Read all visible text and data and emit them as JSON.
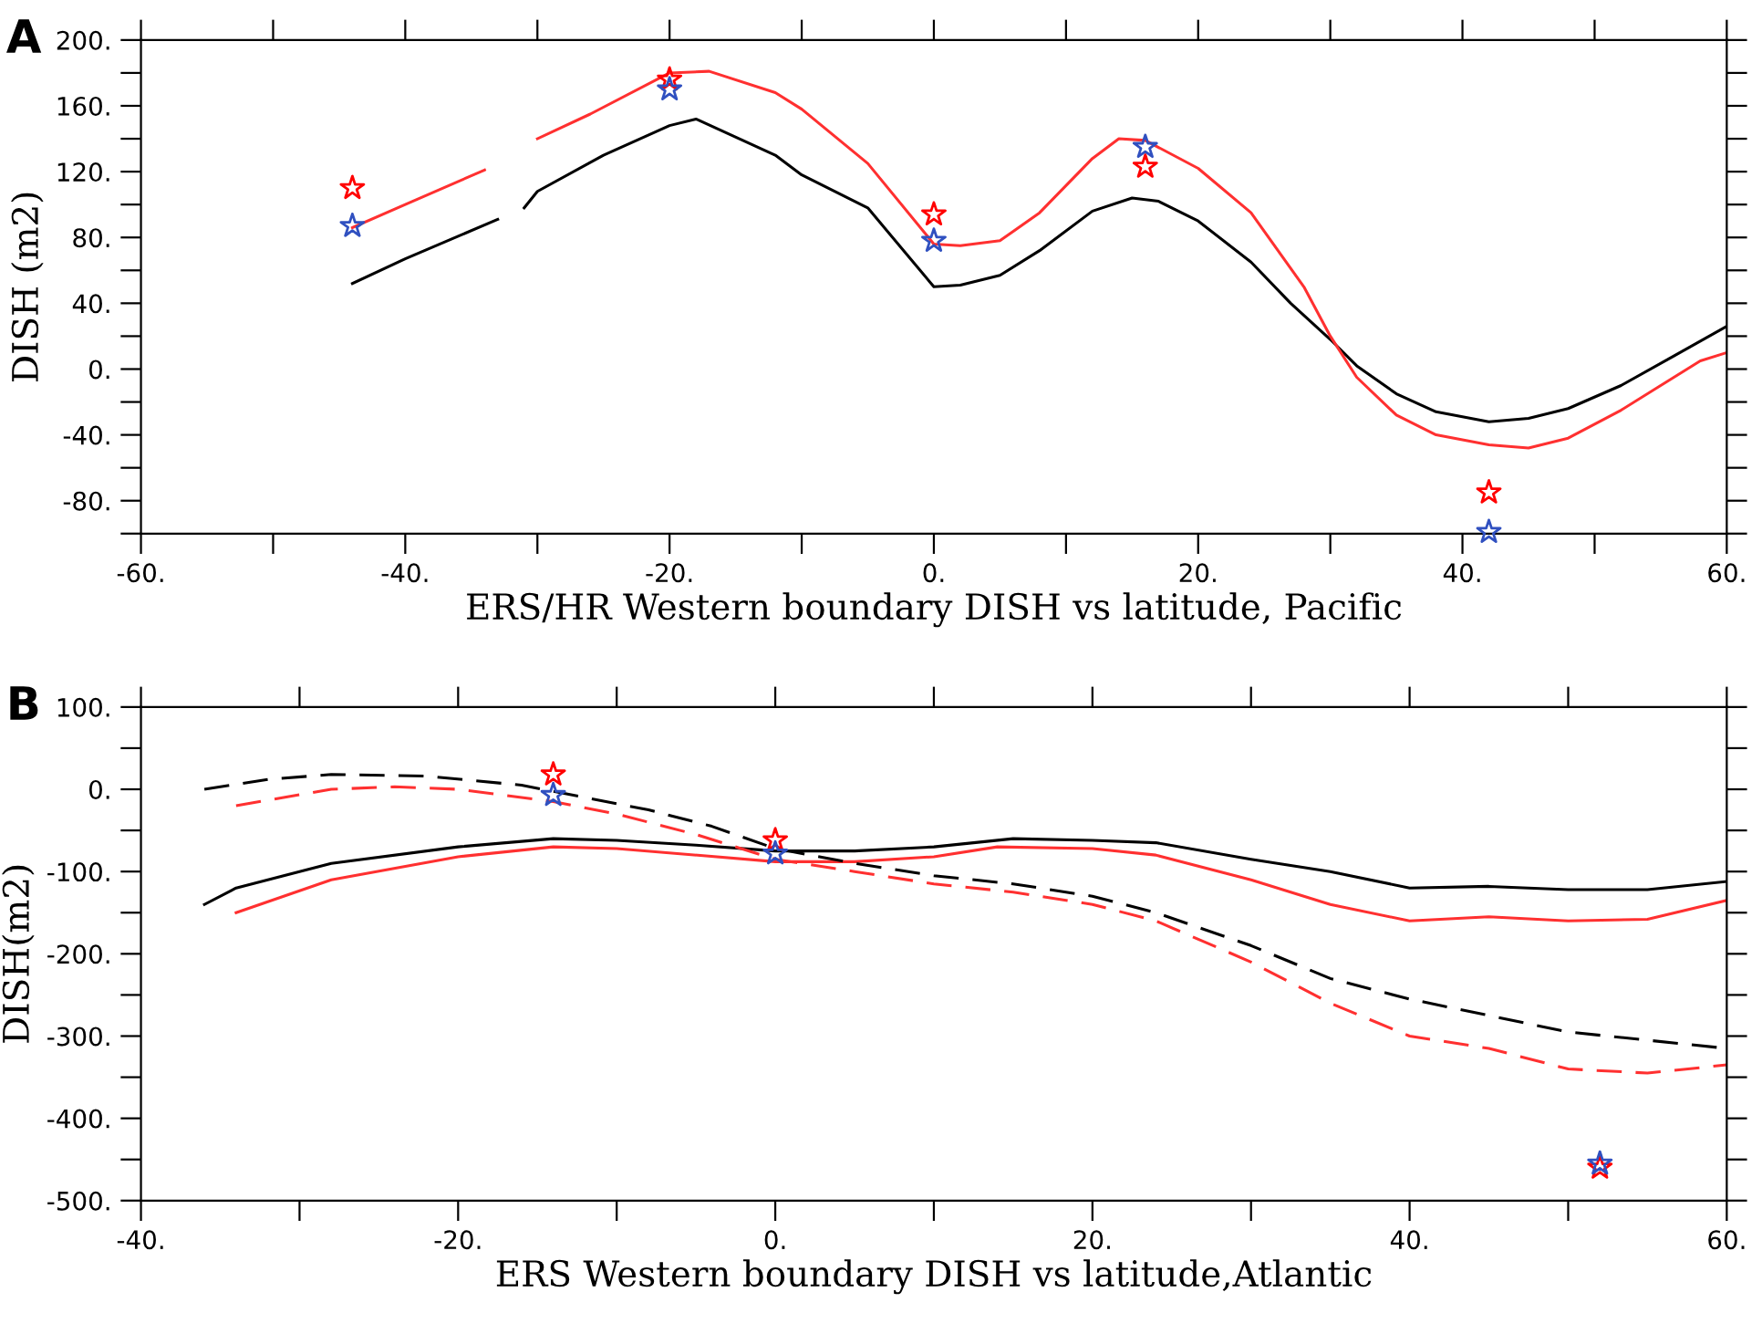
{
  "chart_data": [
    {
      "type": "line",
      "xlabel": "ERS/HR Western boundary DISH vs latitude, Pacific",
      "ylabel": "DISH (m2)",
      "annotations": [
        "A"
      ],
      "xlim": [
        -60,
        60
      ],
      "ylim": [
        -100,
        200
      ],
      "xticks": [
        {
          "value": -60,
          "label": "-60."
        },
        {
          "value": -50,
          "label": null
        },
        {
          "value": -40,
          "label": "-40."
        },
        {
          "value": -30,
          "label": null
        },
        {
          "value": -20,
          "label": "-20."
        },
        {
          "value": -10,
          "label": null
        },
        {
          "value": 0,
          "label": "0."
        },
        {
          "value": 10,
          "label": null
        },
        {
          "value": 20,
          "label": "20."
        },
        {
          "value": 30,
          "label": null
        },
        {
          "value": 40,
          "label": "40."
        },
        {
          "value": 50,
          "label": null
        },
        {
          "value": 60,
          "label": "60."
        }
      ],
      "yticks": [
        {
          "value": -100,
          "label": null
        },
        {
          "value": -80,
          "label": "-80."
        },
        {
          "value": -60,
          "label": null
        },
        {
          "value": -40,
          "label": "-40."
        },
        {
          "value": -20,
          "label": null
        },
        {
          "value": 0,
          "label": "0."
        },
        {
          "value": 20,
          "label": null
        },
        {
          "value": 40,
          "label": "40."
        },
        {
          "value": 60,
          "label": null
        },
        {
          "value": 80,
          "label": "80."
        },
        {
          "value": 100,
          "label": null
        },
        {
          "value": 120,
          "label": "120."
        },
        {
          "value": 140,
          "label": null
        },
        {
          "value": 160,
          "label": "160."
        },
        {
          "value": 180,
          "label": null
        },
        {
          "value": 200,
          "label": "200."
        }
      ],
      "grid": false,
      "legend": false,
      "series": [
        {
          "type": "line",
          "line_style": "solid",
          "color": "#000000",
          "x": [
            -44,
            -40,
            -33,
            -32,
            -31,
            -30,
            -25,
            -20,
            -18,
            -12,
            -10,
            -5,
            0,
            2,
            5,
            8,
            12,
            15,
            17,
            20,
            24,
            27,
            30,
            32,
            35,
            38,
            42,
            45,
            48,
            52,
            56,
            60
          ],
          "values": [
            52,
            67,
            91,
            null,
            98,
            108,
            130,
            148,
            152,
            130,
            118,
            98,
            50,
            51,
            57,
            72,
            96,
            104,
            102,
            90,
            65,
            40,
            18,
            2,
            -15,
            -26,
            -32,
            -30,
            -24,
            -10,
            8,
            26
          ]
        },
        {
          "type": "line",
          "line_style": "solid",
          "color": "#ff3030",
          "x": [
            -44,
            -40,
            -34,
            -32,
            -30,
            -26,
            -20,
            -17,
            -12,
            -10,
            -5,
            0,
            2,
            5,
            8,
            12,
            14,
            16,
            20,
            24,
            28,
            30,
            32,
            35,
            38,
            42,
            45,
            48,
            52,
            55,
            58,
            60
          ],
          "values": [
            86,
            100,
            121,
            null,
            140,
            155,
            180,
            181,
            168,
            158,
            125,
            76,
            75,
            78,
            95,
            128,
            140,
            139,
            122,
            95,
            50,
            20,
            -5,
            -28,
            -40,
            -46,
            -48,
            -42,
            -25,
            -10,
            5,
            10
          ]
        },
        {
          "type": "scatter",
          "marker": "star",
          "color": "#ff0000",
          "x": [
            -44,
            -20,
            0,
            16,
            42
          ],
          "values": [
            110,
            176,
            94,
            123,
            -75
          ]
        },
        {
          "type": "scatter",
          "marker": "star",
          "color": "#3050c0",
          "x": [
            -44,
            -20,
            0,
            16,
            42
          ],
          "values": [
            87,
            170,
            78,
            135,
            -99
          ]
        }
      ]
    },
    {
      "type": "line",
      "xlabel": "ERS Western boundary DISH vs latitude,Atlantic",
      "ylabel": "DISH(m2)",
      "annotations": [
        "B"
      ],
      "xlim": [
        -40,
        60
      ],
      "ylim": [
        -500,
        100
      ],
      "xticks": [
        {
          "value": -40,
          "label": "-40."
        },
        {
          "value": -30,
          "label": null
        },
        {
          "value": -20,
          "label": "-20."
        },
        {
          "value": -10,
          "label": null
        },
        {
          "value": 0,
          "label": "0."
        },
        {
          "value": 10,
          "label": null
        },
        {
          "value": 20,
          "label": "20."
        },
        {
          "value": 30,
          "label": null
        },
        {
          "value": 40,
          "label": "40."
        },
        {
          "value": 50,
          "label": null
        },
        {
          "value": 60,
          "label": "60."
        }
      ],
      "yticks": [
        {
          "value": -500,
          "label": "-500."
        },
        {
          "value": -450,
          "label": null
        },
        {
          "value": -400,
          "label": "-400."
        },
        {
          "value": -350,
          "label": null
        },
        {
          "value": -300,
          "label": "-300."
        },
        {
          "value": -250,
          "label": null
        },
        {
          "value": -200,
          "label": "-200."
        },
        {
          "value": -150,
          "label": null
        },
        {
          "value": -100,
          "label": "-100."
        },
        {
          "value": -50,
          "label": null
        },
        {
          "value": 0,
          "label": "0."
        },
        {
          "value": 50,
          "label": null
        },
        {
          "value": 100,
          "label": "100."
        }
      ],
      "grid": false,
      "legend": false,
      "series": [
        {
          "type": "line",
          "line_style": "solid",
          "color": "#000000",
          "x": [
            -36,
            -34,
            -28,
            -20,
            -14,
            -10,
            -5,
            0,
            5,
            10,
            15,
            20,
            24,
            30,
            35,
            40,
            45,
            50,
            55,
            60
          ],
          "values": [
            -140,
            -120,
            -90,
            -70,
            -60,
            -62,
            -68,
            -75,
            -75,
            -70,
            -60,
            -62,
            -65,
            -85,
            -100,
            -120,
            -118,
            -122,
            -122,
            -112
          ]
        },
        {
          "type": "line",
          "line_style": "solid",
          "color": "#ff3030",
          "x": [
            -34,
            -28,
            -20,
            -14,
            -10,
            0,
            5,
            10,
            14,
            20,
            24,
            30,
            35,
            40,
            45,
            50,
            55,
            60
          ],
          "values": [
            -150,
            -110,
            -82,
            -70,
            -72,
            -88,
            -88,
            -82,
            -70,
            -72,
            -80,
            -110,
            -140,
            -160,
            -155,
            -160,
            -158,
            -135
          ]
        },
        {
          "type": "line",
          "line_style": "dashed",
          "color": "#000000",
          "x": [
            -36,
            -32,
            -28,
            -22,
            -16,
            -12,
            -8,
            -4,
            0,
            5,
            10,
            15,
            20,
            24,
            30,
            35,
            40,
            45,
            50,
            55,
            60
          ],
          "values": [
            0,
            12,
            18,
            16,
            5,
            -10,
            -25,
            -45,
            -72,
            -90,
            -105,
            -115,
            -130,
            -150,
            -190,
            -230,
            -255,
            -275,
            -295,
            -305,
            -315
          ]
        },
        {
          "type": "line",
          "line_style": "dashed",
          "color": "#ff3030",
          "x": [
            -34,
            -28,
            -24,
            -20,
            -14,
            -10,
            -5,
            0,
            5,
            10,
            15,
            20,
            24,
            30,
            35,
            40,
            45,
            50,
            55,
            60
          ],
          "values": [
            -20,
            0,
            3,
            0,
            -15,
            -30,
            -55,
            -85,
            -100,
            -115,
            -125,
            -140,
            -160,
            -210,
            -260,
            -300,
            -315,
            -340,
            -345,
            -335
          ]
        },
        {
          "type": "scatter",
          "marker": "star",
          "color": "#ff0000",
          "x": [
            -14,
            0,
            52
          ],
          "values": [
            18,
            -62,
            -460
          ]
        },
        {
          "type": "scatter",
          "marker": "star",
          "color": "#3050c0",
          "x": [
            -14,
            0,
            52
          ],
          "values": [
            -7,
            -78,
            -455
          ]
        }
      ]
    }
  ]
}
